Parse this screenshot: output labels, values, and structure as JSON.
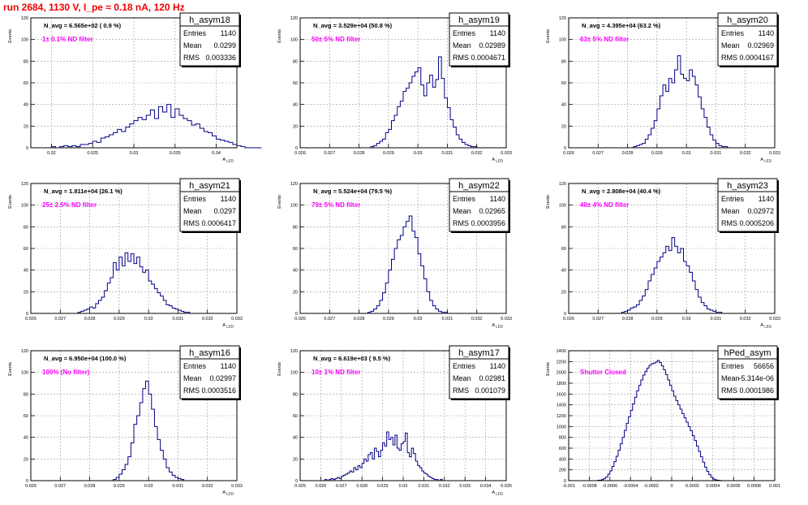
{
  "page_title": "run 2684,  1130 V, I_pe ≈ 0.18 nA, 120 Hz",
  "style": {
    "hist_color": "#000088",
    "label_color": "#ff00ff",
    "title_color": "#ee0000",
    "grid_color": "#999999"
  },
  "chart_data": [
    {
      "type": "histogram",
      "name": "h_asym18",
      "navg": "N_avg = 6.565e+02 ( 0.9 %)",
      "filter": "1± 0.1% ND filter",
      "stats": [
        [
          "Entries",
          "1140"
        ],
        [
          "Mean",
          "0.0299"
        ],
        [
          "RMS",
          "0.003336"
        ]
      ],
      "xlabel": "A_LED",
      "ylabel": "Events",
      "xlim": [
        0.0175,
        0.0425
      ],
      "ylim": [
        0,
        120
      ],
      "xticks": [
        0.02,
        0.025,
        0.03,
        0.035,
        0.04
      ],
      "xtick_labels": [
        "0.02",
        "0.025",
        "0.03",
        "0.035",
        "0.04"
      ],
      "yticks": [
        0,
        20,
        40,
        60,
        80,
        100,
        120
      ],
      "bin_start": 0.0175,
      "bin_width": 0.0005,
      "values": [
        0,
        0,
        0,
        0,
        0,
        1,
        0,
        1,
        2,
        1,
        2,
        1,
        3,
        3,
        4,
        6,
        5,
        9,
        10,
        12,
        14,
        17,
        15,
        19,
        22,
        25,
        28,
        26,
        30,
        35,
        27,
        38,
        33,
        40,
        28,
        36,
        30,
        27,
        25,
        21,
        22,
        18,
        15,
        14,
        11,
        8,
        7,
        6,
        5,
        3,
        2,
        1,
        0,
        0,
        0,
        0
      ]
    },
    {
      "type": "histogram",
      "name": "h_asym19",
      "navg": "N_avg = 3.529e+04 (50.8 %)",
      "filter": "50± 5% ND filter",
      "stats": [
        [
          "Entries",
          "1140"
        ],
        [
          "Mean",
          "0.02989"
        ],
        [
          "RMS",
          "0.0004671"
        ]
      ],
      "xlabel": "A_LED",
      "ylabel": "Events",
      "xlim": [
        0.026,
        0.033
      ],
      "ylim": [
        0,
        120
      ],
      "xticks": [
        0.026,
        0.027,
        0.028,
        0.029,
        0.03,
        0.031,
        0.032,
        0.033
      ],
      "xtick_labels": [
        "0.026",
        "0.027",
        "0.028",
        "0.029",
        "0.03",
        "0.031",
        "0.032",
        "0.033"
      ],
      "yticks": [
        0,
        20,
        40,
        60,
        80,
        100,
        120
      ],
      "bin_start": 0.0284,
      "bin_width": 0.0001,
      "values": [
        1,
        2,
        4,
        6,
        8,
        14,
        17,
        25,
        30,
        38,
        43,
        52,
        55,
        60,
        66,
        70,
        74,
        58,
        48,
        60,
        67,
        56,
        63,
        84,
        64,
        46,
        37,
        26,
        19,
        12,
        8,
        5,
        3,
        2,
        1,
        1
      ]
    },
    {
      "type": "histogram",
      "name": "h_asym20",
      "navg": "N_avg = 4.395e+04 (63.2 %)",
      "filter": "63± 5% ND filter",
      "stats": [
        [
          "Entries",
          "1140"
        ],
        [
          "Mean",
          "0.02969"
        ],
        [
          "RMS",
          "0.0004167"
        ]
      ],
      "xlabel": "A_LED",
      "ylabel": "Events",
      "xlim": [
        0.026,
        0.033
      ],
      "ylim": [
        0,
        120
      ],
      "xticks": [
        0.026,
        0.027,
        0.028,
        0.029,
        0.03,
        0.031,
        0.032,
        0.033
      ],
      "xtick_labels": [
        "0.026",
        "0.027",
        "0.028",
        "0.029",
        "0.03",
        "0.031",
        "0.032",
        "0.033"
      ],
      "yticks": [
        0,
        20,
        40,
        60,
        80,
        100,
        120
      ],
      "bin_start": 0.0282,
      "bin_width": 0.0001,
      "values": [
        1,
        2,
        3,
        4,
        8,
        12,
        18,
        25,
        36,
        48,
        58,
        52,
        64,
        60,
        72,
        85,
        68,
        64,
        62,
        72,
        66,
        58,
        47,
        36,
        28,
        19,
        12,
        7,
        4,
        2,
        1,
        1
      ]
    },
    {
      "type": "histogram",
      "name": "h_asym21",
      "navg": "N_avg = 1.811e+04 (26.1 %)",
      "filter": "25± 2.5% ND filter",
      "stats": [
        [
          "Entries",
          "1140"
        ],
        [
          "Mean",
          "0.0297"
        ],
        [
          "RMS",
          "0.0006417"
        ]
      ],
      "xlabel": "A_LED",
      "ylabel": "Events",
      "xlim": [
        0.026,
        0.033
      ],
      "ylim": [
        0,
        120
      ],
      "xticks": [
        0.026,
        0.027,
        0.028,
        0.029,
        0.03,
        0.031,
        0.032,
        0.033
      ],
      "xtick_labels": [
        "0.026",
        "0.027",
        "0.028",
        "0.029",
        "0.03",
        "0.031",
        "0.032",
        "0.033"
      ],
      "yticks": [
        0,
        20,
        40,
        60,
        80,
        100,
        120
      ],
      "bin_start": 0.0276,
      "bin_width": 0.0001,
      "values": [
        1,
        2,
        3,
        4,
        6,
        5,
        9,
        12,
        15,
        21,
        28,
        33,
        47,
        40,
        52,
        44,
        56,
        48,
        55,
        46,
        52,
        43,
        38,
        40,
        30,
        27,
        23,
        19,
        16,
        12,
        8,
        7,
        5,
        4,
        3,
        2,
        1,
        1
      ]
    },
    {
      "type": "histogram",
      "name": "h_asym22",
      "navg": "N_avg = 5.524e+04 (79.5 %)",
      "filter": "79± 5% ND filter",
      "stats": [
        [
          "Entries",
          "1140"
        ],
        [
          "Mean",
          "0.02965"
        ],
        [
          "RMS",
          "0.0003956"
        ]
      ],
      "xlabel": "A_LED",
      "ylabel": "Events",
      "xlim": [
        0.026,
        0.033
      ],
      "ylim": [
        0,
        120
      ],
      "xticks": [
        0.026,
        0.027,
        0.028,
        0.029,
        0.03,
        0.031,
        0.032,
        0.033
      ],
      "xtick_labels": [
        "0.026",
        "0.027",
        "0.028",
        "0.029",
        "0.03",
        "0.031",
        "0.032",
        "0.033"
      ],
      "yticks": [
        0,
        20,
        40,
        60,
        80,
        100,
        120
      ],
      "bin_start": 0.0283,
      "bin_width": 0.0001,
      "values": [
        1,
        2,
        4,
        7,
        12,
        19,
        28,
        40,
        50,
        60,
        68,
        72,
        80,
        85,
        90,
        76,
        70,
        55,
        44,
        32,
        20,
        12,
        7,
        4,
        2,
        1,
        1
      ]
    },
    {
      "type": "histogram",
      "name": "h_asym23",
      "navg": "N_avg = 2.808e+04 (40.4 %)",
      "filter": "40± 4% ND filter",
      "stats": [
        [
          "Entries",
          "1140"
        ],
        [
          "Mean",
          "0.02972"
        ],
        [
          "RMS",
          "0.0005206"
        ]
      ],
      "xlabel": "A_LED",
      "ylabel": "Events",
      "xlim": [
        0.026,
        0.033
      ],
      "ylim": [
        0,
        120
      ],
      "xticks": [
        0.026,
        0.027,
        0.028,
        0.029,
        0.03,
        0.031,
        0.032,
        0.033
      ],
      "xtick_labels": [
        "0.026",
        "0.027",
        "0.028",
        "0.029",
        "0.03",
        "0.031",
        "0.032",
        "0.033"
      ],
      "yticks": [
        0,
        20,
        40,
        60,
        80,
        100,
        120
      ],
      "bin_start": 0.0278,
      "bin_width": 0.0001,
      "values": [
        1,
        2,
        3,
        5,
        6,
        8,
        12,
        16,
        22,
        30,
        36,
        42,
        48,
        52,
        56,
        62,
        58,
        70,
        62,
        56,
        60,
        48,
        44,
        38,
        30,
        22,
        15,
        10,
        7,
        4,
        3,
        2,
        1,
        1
      ]
    },
    {
      "type": "histogram",
      "name": "h_asym16",
      "navg": "N_avg = 6.950e+04 (100.0 %)",
      "filter": "100% (No filter)",
      "stats": [
        [
          "Entries",
          "1140"
        ],
        [
          "Mean",
          "0.02997"
        ],
        [
          "RMS",
          "0.0003516"
        ]
      ],
      "xlabel": "A_LED",
      "ylabel": "Events",
      "xlim": [
        0.026,
        0.033
      ],
      "ylim": [
        0,
        120
      ],
      "xticks": [
        0.026,
        0.027,
        0.028,
        0.029,
        0.03,
        0.031,
        0.032,
        0.033
      ],
      "xtick_labels": [
        "0.026",
        "0.027",
        "0.028",
        "0.029",
        "0.03",
        "0.031",
        "0.032",
        "0.033"
      ],
      "yticks": [
        0,
        20,
        40,
        60,
        80,
        100,
        120
      ],
      "bin_start": 0.0288,
      "bin_width": 0.0001,
      "values": [
        1,
        3,
        6,
        10,
        15,
        22,
        35,
        52,
        60,
        72,
        85,
        92,
        80,
        66,
        50,
        38,
        28,
        20,
        12,
        8,
        5,
        3,
        2,
        1
      ]
    },
    {
      "type": "histogram",
      "name": "h_asym17",
      "navg": "N_avg = 6.619e+03 ( 9.5 %)",
      "filter": "10± 1% ND filter",
      "stats": [
        [
          "Entries",
          "1140"
        ],
        [
          "Mean",
          "0.02981"
        ],
        [
          "RMS",
          "0.001079"
        ]
      ],
      "xlabel": "A_LED",
      "ylabel": "Events",
      "xlim": [
        0.025,
        0.035
      ],
      "ylim": [
        0,
        120
      ],
      "xticks": [
        0.025,
        0.026,
        0.027,
        0.028,
        0.029,
        0.03,
        0.031,
        0.032,
        0.033,
        0.034,
        0.035
      ],
      "xtick_labels": [
        "0.025",
        "0.026",
        "0.027",
        "0.028",
        "0.029",
        "0.03",
        "0.031",
        "0.032",
        "0.033",
        "0.034",
        "0.035"
      ],
      "yticks": [
        0,
        20,
        40,
        60,
        80,
        100,
        120
      ],
      "bin_start": 0.0262,
      "bin_width": 0.0001,
      "values": [
        1,
        0,
        1,
        2,
        1,
        2,
        3,
        2,
        4,
        5,
        6,
        7,
        9,
        8,
        12,
        10,
        14,
        12,
        16,
        20,
        18,
        24,
        26,
        20,
        30,
        27,
        22,
        28,
        35,
        32,
        45,
        38,
        40,
        33,
        42,
        30,
        28,
        34,
        36,
        44,
        26,
        22,
        30,
        25,
        18,
        14,
        12,
        9,
        7,
        6,
        4,
        3,
        2,
        1,
        1,
        0,
        1
      ]
    },
    {
      "type": "histogram",
      "name": "hPed_asym",
      "navg": "",
      "filter": "Shutter Closed",
      "stats": [
        [
          "Entries",
          "56656"
        ],
        [
          "Mean",
          "-5.314e-06"
        ],
        [
          "RMS",
          "0.0001986"
        ]
      ],
      "xlabel": "",
      "ylabel": "Events",
      "xlim": [
        -0.001,
        0.001
      ],
      "ylim": [
        0,
        2400
      ],
      "xticks": [
        -0.001,
        -0.0008,
        -0.0006,
        -0.0004,
        -0.0002,
        0,
        0.0002,
        0.0004,
        0.0006,
        0.0008,
        0.001
      ],
      "xtick_labels": [
        "-0.001",
        "-0.0008",
        "-0.0006",
        "-0.0004",
        "-0.0002",
        "0",
        "0.0002",
        "0.0004",
        "0.0006",
        "0.0008",
        "0.001"
      ],
      "yticks": [
        0,
        200,
        400,
        600,
        800,
        1000,
        1200,
        1400,
        1600,
        1800,
        2000,
        2200,
        2400
      ],
      "bin_start": -0.00072,
      "bin_width": 2e-05,
      "values": [
        5,
        10,
        20,
        40,
        70,
        120,
        180,
        260,
        350,
        450,
        560,
        680,
        800,
        930,
        1060,
        1180,
        1300,
        1420,
        1540,
        1660,
        1760,
        1860,
        1950,
        2020,
        2080,
        2130,
        2160,
        2170,
        2190,
        2220,
        2180,
        2120,
        2050,
        1960,
        1860,
        1760,
        1660,
        1560,
        1480,
        1400,
        1320,
        1240,
        1160,
        1080,
        1000,
        920,
        830,
        740,
        640,
        540,
        440,
        340,
        250,
        170,
        110,
        60,
        30,
        15,
        8,
        3
      ]
    }
  ]
}
